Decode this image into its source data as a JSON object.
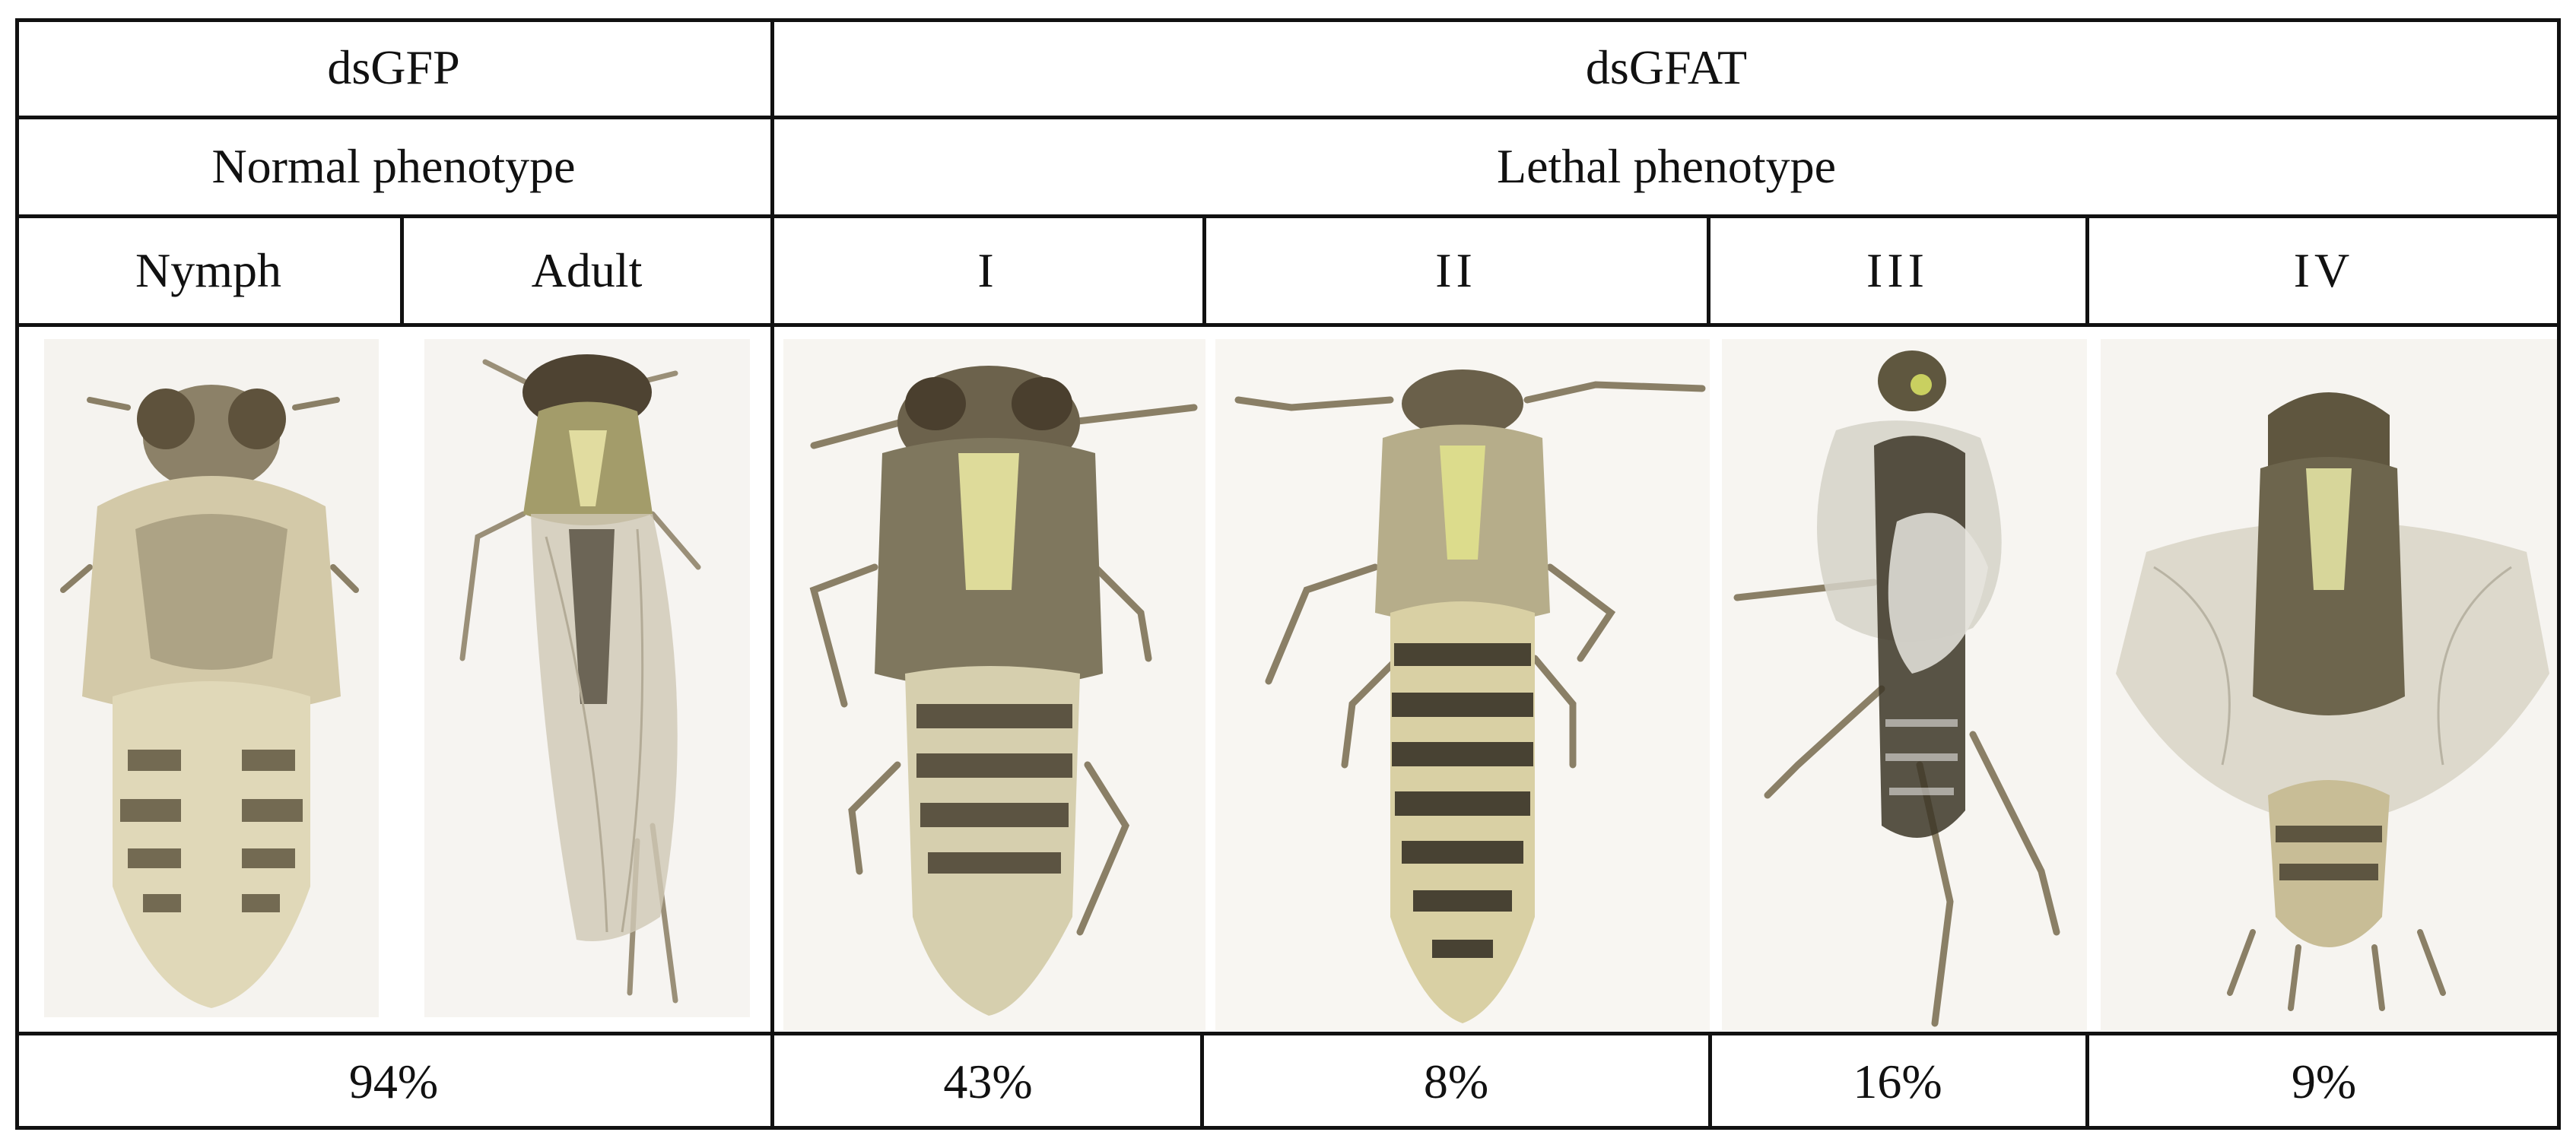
{
  "groups": {
    "control": {
      "treatment": "dsGFP",
      "phenotype": "Normal phenotype",
      "percent": "94%"
    },
    "knockdown": {
      "treatment": "dsGFAT",
      "phenotype": "Lethal phenotype"
    }
  },
  "stages": [
    "Nymph",
    "Adult"
  ],
  "classes": [
    {
      "label": "I",
      "percent": "43%"
    },
    {
      "label": "II",
      "percent": "8%"
    },
    {
      "label": "III",
      "percent": "16%"
    },
    {
      "label": "IV",
      "percent": "9%"
    }
  ],
  "photos": [
    "nymph",
    "adult",
    "lethal-I",
    "lethal-II",
    "lethal-III",
    "lethal-IV"
  ],
  "colors": {
    "grid": "#111111",
    "background": "#ffffff",
    "photo_bg": "#f4f1ec"
  }
}
